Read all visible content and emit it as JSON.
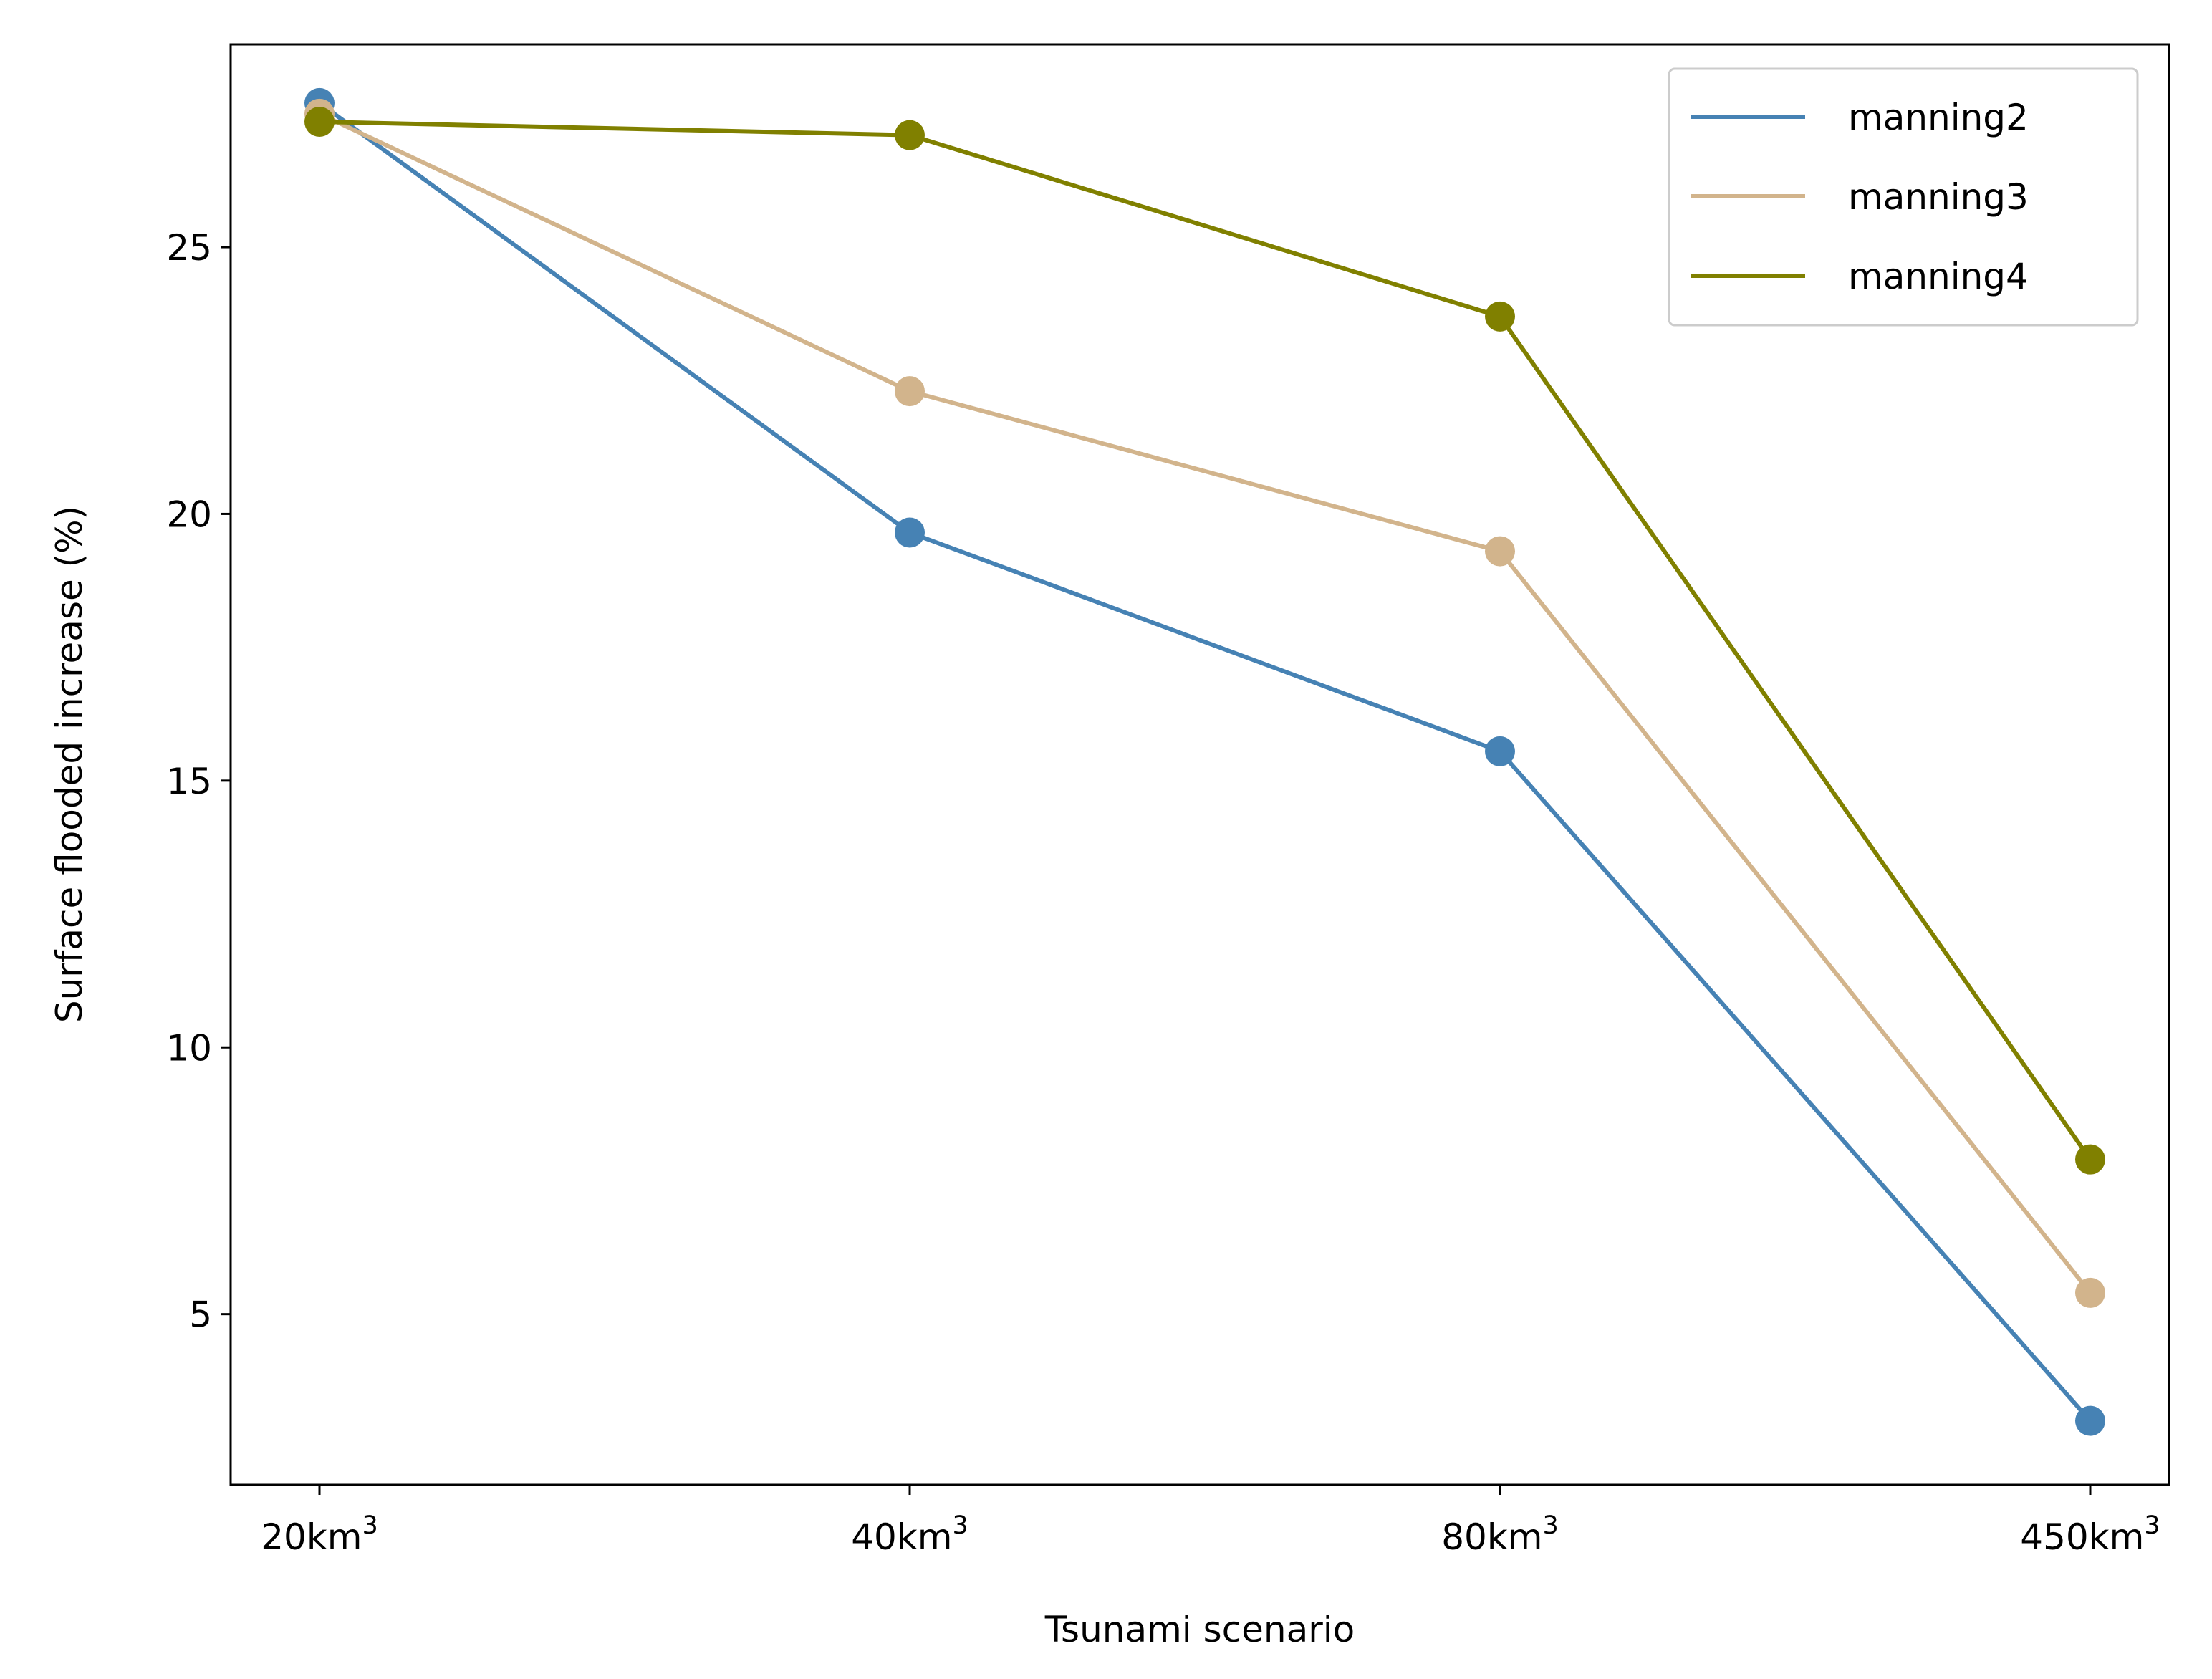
{
  "chart_data": {
    "type": "line",
    "title": "",
    "xlabel": "Tsunami scenario",
    "ylabel": "Surface flooded increase (%)",
    "categories": [
      {
        "base": "20km",
        "sup": "3"
      },
      {
        "base": "40km",
        "sup": "3"
      },
      {
        "base": "80km",
        "sup": "3"
      },
      {
        "base": "450km",
        "sup": "3"
      }
    ],
    "ylim": [
      1.8,
      28.8
    ],
    "yticks": [
      5,
      10,
      15,
      20,
      25
    ],
    "grid": false,
    "legend_position": "top-right",
    "series": [
      {
        "name": "manning2",
        "color": "#4682b4",
        "values": [
          27.7,
          19.65,
          15.55,
          3.0
        ]
      },
      {
        "name": "manning3",
        "color": "#d2b48c",
        "values": [
          27.5,
          22.3,
          19.3,
          5.4
        ]
      },
      {
        "name": "manning4",
        "color": "#808000",
        "values": [
          27.35,
          27.1,
          23.7,
          7.9
        ]
      }
    ]
  }
}
